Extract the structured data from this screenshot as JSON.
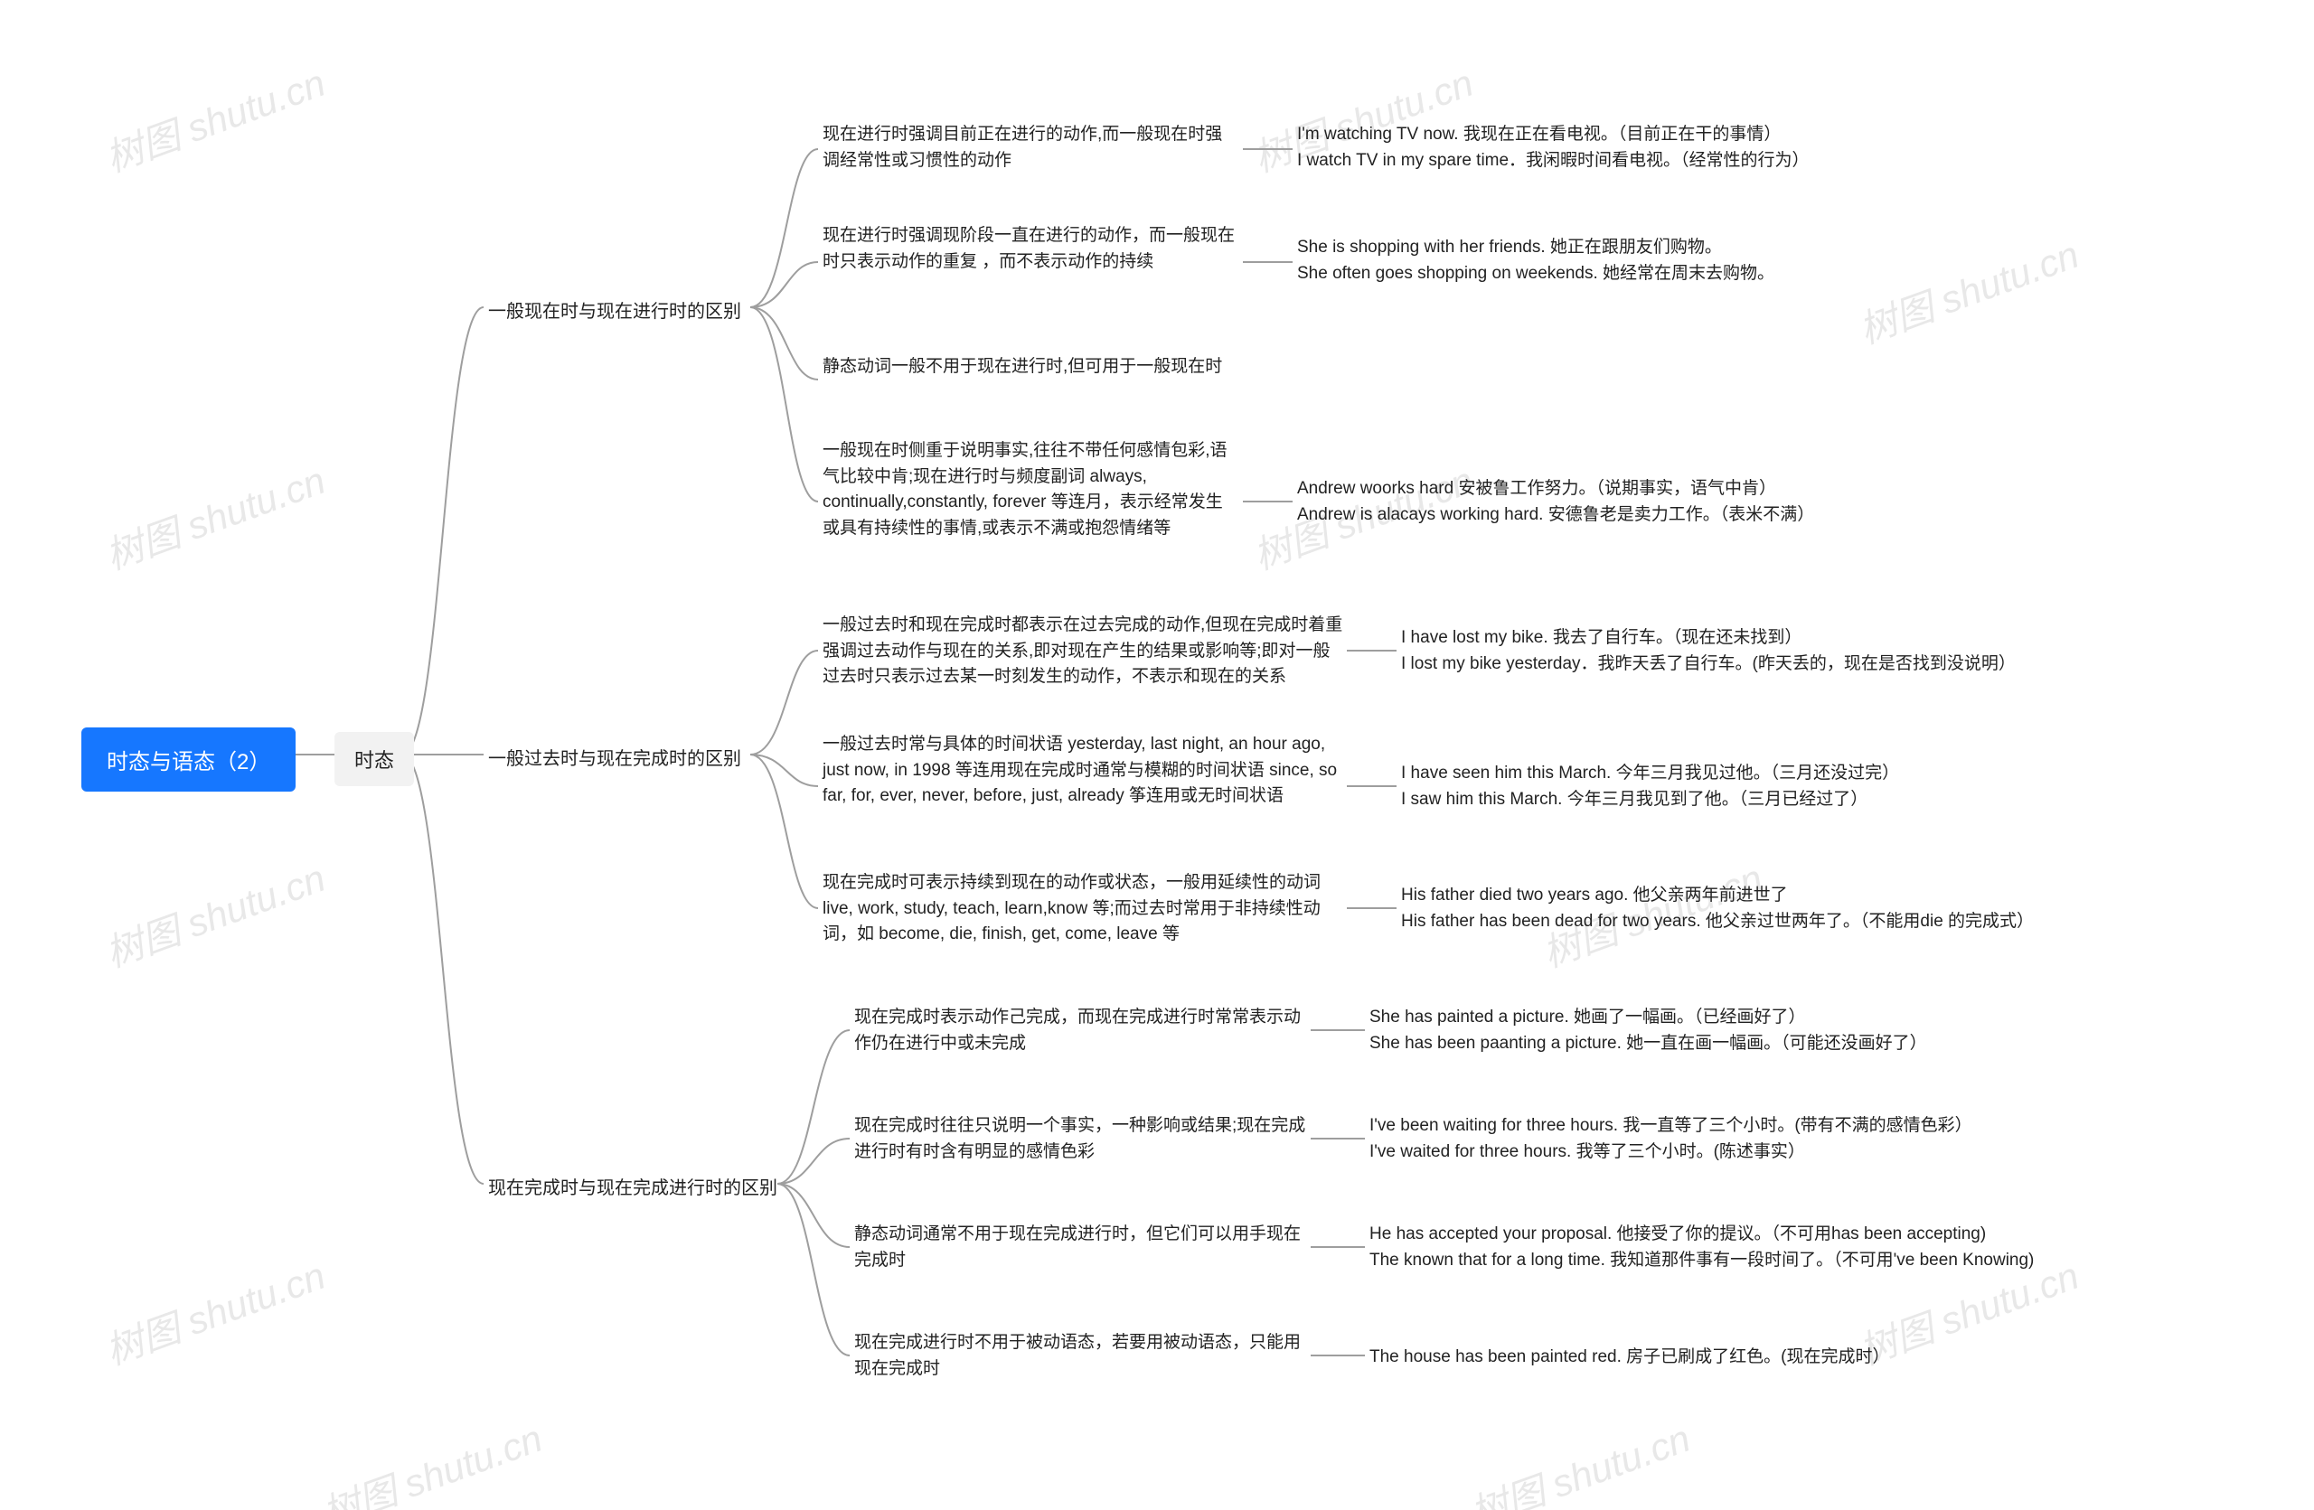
{
  "diagram": {
    "type": "tree",
    "background_color": "#ffffff",
    "connector_color": "#9e9e9e",
    "connector_width": 2,
    "watermark_text": "树图 shutu.cn",
    "watermark_color": "#e8e8e8",
    "watermark_fontsize": 42,
    "watermark_angle": -20,
    "root": {
      "label": "时态与语态（2）",
      "bg_color": "#1677ff",
      "text_color": "#ffffff",
      "fontsize": 24
    },
    "level1": {
      "label": "时态",
      "bg_color": "#f2f2f2",
      "text_color": "#222222",
      "fontsize": 22
    },
    "sections": [
      {
        "title": "一般现在时与现在进行时的区别",
        "fontsize": 20,
        "items": [
          {
            "desc": "现在进行时强调目前正在进行的动作,而一般现在时强调经常性或习惯性的动作",
            "example": "I'm watching TV now. 我现在正在看电视。（目前正在干的事情）\nI watch TV in my spare time．我闲暇时间看电视。（经常性的行为）"
          },
          {
            "desc": "现在进行时强调现阶段一直在进行的动作，而一般现在时只表示动作的重复 ，而不表示动作的持续",
            "example": "She is shopping with her friends. 她正在跟朋友们购物。\n She often goes shopping on weekends. 她经常在周末去购物。"
          },
          {
            "desc": " 静态动词一般不用于现在进行时,但可用于一般现在时",
            "example": ""
          },
          {
            "desc": "一般现在时侧重于说明事实,往往不带任何感情包彩,语气比较中肯;现在进行时与频度副词 always, continually,constantly, forever 等连月，表示经常发生或具有持续性的事情,或表示不满或抱怨情绪等",
            "example": "Andrew woorks hard 安被鲁工作努力。（说期事实，语气中肯）\nAndrew is alacays working hard. 安德鲁老是卖力工作。（表米不满）"
          }
        ]
      },
      {
        "title": "一般过去时与现在完成时的区别",
        "fontsize": 20,
        "items": [
          {
            "desc": "一般过去时和现在完成时都表示在过去完成的动作,但现在完成时着重强调过去动作与现在的关系,即对现在产生的结果或影响等;即对一般过去时只表示过去某一时刻发生的动作，不表示和现在的关系",
            "example": "I have lost my bike. 我去了自行车。（现在还未找到）\nI lost my bike yesterday．我昨天丢了自行车。(昨天丢的，现在是否找到没说明）"
          },
          {
            "desc": "一般过去时常与具体的时间状语 yesterday, last night, an hour ago, just now,   in 1998 等连用现在完成时通常与模糊的时间状语 since, so far, for, ever, never, before, just, already 筝连用或无时间状语",
            "example": "I have seen him this March. 今年三月我见过他。（三月还没过完）\nI saw him this March. 今年三月我见到了他。（三月已经过了）"
          },
          {
            "desc": "现在完成时可表示持续到现在的动作或状态，一般用延续性的动词 live, work, study, teach, learn,know 等;而过去时常用于非持续性动词，如 become, die, finish, get, come, leave 等",
            "example": "His father died two years ago. 他父亲两年前进世了\nHis father has been dead for two years. 他父亲过世两年了。（不能用die 的完成式）"
          }
        ]
      },
      {
        "title": "现在完成时与现在完成进行时的区别",
        "fontsize": 20,
        "items": [
          {
            "desc": "现在完成时表示动作己完成，而现在完成进行时常常表示动作仍在进行中或未完成",
            "example": "She has painted a picture. 她画了一幅画。（已经画好了）\nShe has been paanting a picture. 她一直在画一幅画。（可能还没画好了）"
          },
          {
            "desc": "现在完成时往往只说明一个事实，一种影响或结果;现在完成进行时有时含有明显的感情色彩",
            "example": "I've been waiting for three hours. 我一直等了三个小时。(带有不满的感情色彩）\nI've waited for three hours. 我等了三个小时。(陈述事实）"
          },
          {
            "desc": "静态动词通常不用于现在完成进行时，但它们可以用手现在完成时",
            "example": "He has accepted your proposal. 他接受了你的提议。（不可用has been accepting)\nThe known that for a long time. 我知道那件事有一段时间了。（不可用've been Knowing)"
          },
          {
            "desc": "现在完成进行时不用于被动语态，若要用被动语态，只能用现在完成时",
            "example": "The house has been painted red. 房子已刷成了红色。(现在完成时）"
          }
        ]
      }
    ]
  }
}
